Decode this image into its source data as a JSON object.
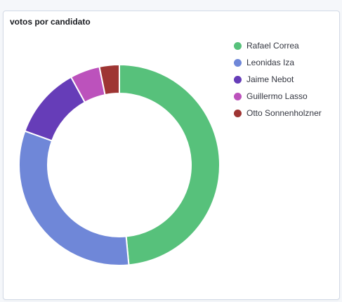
{
  "panel": {
    "title": "votos por candidato"
  },
  "chart_data": {
    "type": "pie",
    "style": "donut",
    "categories": [
      "Rafael Correa",
      "Leonidas Iza",
      "Jaime Nebot",
      "Guillermo Lasso",
      "Otto Sonnenholzner"
    ],
    "values": [
      48.5,
      32.0,
      11.5,
      4.8,
      3.2
    ],
    "colors": [
      "#57c17b",
      "#6f87d8",
      "#663db8",
      "#bc52bc",
      "#9e3533"
    ],
    "legend": "right",
    "start_angle_deg": 0,
    "direction": "clockwise",
    "title": "votos por candidato"
  }
}
